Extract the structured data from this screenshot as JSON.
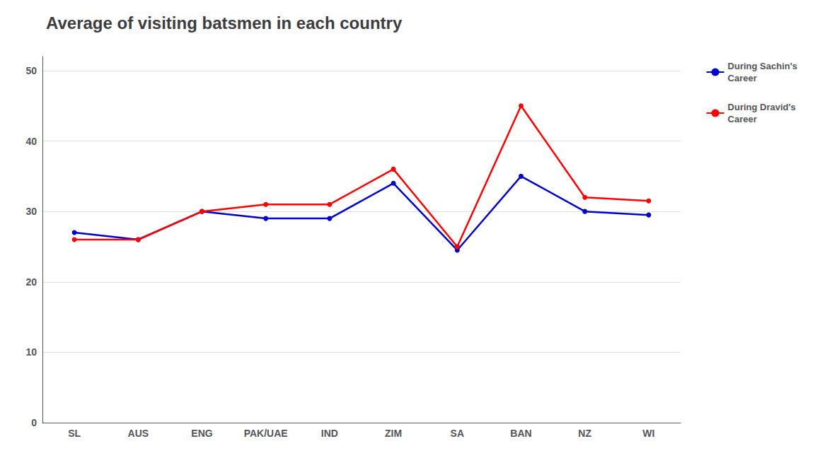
{
  "chart_data": {
    "type": "line",
    "title": "Average of visiting batsmen in each country",
    "categories": [
      "SL",
      "AUS",
      "ENG",
      "PAK/UAE",
      "IND",
      "ZIM",
      "SA",
      "BAN",
      "NZ",
      "WI"
    ],
    "series": [
      {
        "name": "During Sachin's\nCareer",
        "color": "#0000CD",
        "marker": "circle",
        "values": [
          27.0,
          26.0,
          30.0,
          29.0,
          29.0,
          34.0,
          24.5,
          35.0,
          30.0,
          29.5
        ]
      },
      {
        "name": "During Dravid's\nCareer",
        "color": "#FF0000",
        "marker": "circle",
        "values": [
          26.0,
          26.0,
          30.0,
          31.0,
          31.0,
          36.0,
          25.0,
          45.0,
          32.0,
          31.5
        ]
      }
    ],
    "ylim": [
      0,
      52
    ],
    "yticks": [
      0,
      10,
      20,
      30,
      40,
      50
    ],
    "grid": true,
    "legend": "right"
  }
}
